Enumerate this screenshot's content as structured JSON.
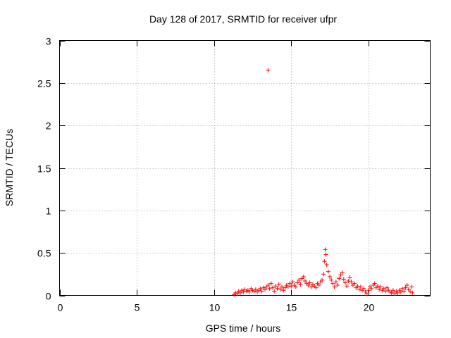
{
  "chart_data": {
    "type": "scatter",
    "title": "Day 128 of 2017, SRMTID for receiver ufpr",
    "xlabel": "GPS time / hours",
    "ylabel": "SRMTID / TECUs",
    "xlim": [
      0,
      24
    ],
    "ylim": [
      0,
      3
    ],
    "xticks": [
      0,
      5,
      10,
      15,
      20
    ],
    "xtick_labels": [
      "0",
      "5",
      "10",
      "15",
      "20"
    ],
    "yticks": [
      0,
      0.5,
      1,
      1.5,
      2,
      2.5,
      3
    ],
    "ytick_labels": [
      "0",
      "0.5",
      "1",
      "1.5",
      "2",
      "2.5",
      "3"
    ],
    "grid": true,
    "marker": "+",
    "color": "#ff0000",
    "series": [
      {
        "name": "SRMTID",
        "points": [
          [
            11.3,
            0.01
          ],
          [
            11.4,
            0.03
          ],
          [
            11.5,
            0.02
          ],
          [
            11.6,
            0.05
          ],
          [
            11.7,
            0.03
          ],
          [
            11.8,
            0.06
          ],
          [
            11.9,
            0.04
          ],
          [
            12.0,
            0.07
          ],
          [
            12.1,
            0.05
          ],
          [
            12.2,
            0.06
          ],
          [
            12.3,
            0.04
          ],
          [
            12.4,
            0.08
          ],
          [
            12.5,
            0.06
          ],
          [
            12.6,
            0.05
          ],
          [
            12.7,
            0.07
          ],
          [
            12.8,
            0.04
          ],
          [
            12.9,
            0.06
          ],
          [
            13.0,
            0.08
          ],
          [
            13.1,
            0.05
          ],
          [
            13.2,
            0.09
          ],
          [
            13.3,
            0.07
          ],
          [
            13.4,
            0.1
          ],
          [
            13.5,
            0.12
          ],
          [
            13.6,
            0.08
          ],
          [
            13.7,
            0.14
          ],
          [
            13.8,
            0.09
          ],
          [
            13.9,
            0.05
          ],
          [
            14.0,
            0.11
          ],
          [
            14.1,
            0.08
          ],
          [
            14.2,
            0.13
          ],
          [
            14.3,
            0.07
          ],
          [
            14.4,
            0.1
          ],
          [
            14.5,
            0.06
          ],
          [
            14.6,
            0.09
          ],
          [
            14.7,
            0.12
          ],
          [
            14.8,
            0.1
          ],
          [
            14.9,
            0.14
          ],
          [
            15.0,
            0.11
          ],
          [
            15.1,
            0.16
          ],
          [
            15.2,
            0.12
          ],
          [
            15.3,
            0.1
          ],
          [
            15.4,
            0.15
          ],
          [
            15.5,
            0.18
          ],
          [
            15.6,
            0.13
          ],
          [
            15.7,
            0.2
          ],
          [
            15.8,
            0.22
          ],
          [
            15.9,
            0.17
          ],
          [
            16.0,
            0.14
          ],
          [
            16.1,
            0.12
          ],
          [
            16.2,
            0.15
          ],
          [
            16.3,
            0.1
          ],
          [
            16.4,
            0.13
          ],
          [
            16.5,
            0.11
          ],
          [
            16.6,
            0.09
          ],
          [
            16.7,
            0.14
          ],
          [
            16.8,
            0.12
          ],
          [
            16.9,
            0.16
          ],
          [
            17.0,
            0.18
          ],
          [
            17.1,
            0.25
          ],
          [
            17.15,
            0.4
          ],
          [
            17.2,
            0.54
          ],
          [
            17.25,
            0.48
          ],
          [
            17.3,
            0.36
          ],
          [
            17.4,
            0.28
          ],
          [
            17.5,
            0.22
          ],
          [
            17.6,
            0.18
          ],
          [
            17.7,
            0.14
          ],
          [
            17.8,
            0.1
          ],
          [
            17.9,
            0.16
          ],
          [
            18.0,
            0.12
          ],
          [
            18.1,
            0.2
          ],
          [
            18.2,
            0.24
          ],
          [
            18.3,
            0.27
          ],
          [
            18.4,
            0.19
          ],
          [
            18.5,
            0.15
          ],
          [
            18.6,
            0.11
          ],
          [
            18.7,
            0.17
          ],
          [
            18.8,
            0.21
          ],
          [
            18.9,
            0.16
          ],
          [
            19.0,
            0.12
          ],
          [
            19.1,
            0.14
          ],
          [
            19.2,
            0.09
          ],
          [
            19.3,
            0.11
          ],
          [
            19.4,
            0.07
          ],
          [
            19.5,
            0.1
          ],
          [
            19.6,
            0.06
          ],
          [
            19.7,
            0.08
          ],
          [
            19.8,
            0.04
          ],
          [
            19.9,
            0.02
          ],
          [
            20.0,
            0.06
          ],
          [
            20.1,
            0.1
          ],
          [
            20.2,
            0.08
          ],
          [
            20.3,
            0.12
          ],
          [
            20.4,
            0.14
          ],
          [
            20.5,
            0.09
          ],
          [
            20.6,
            0.11
          ],
          [
            20.7,
            0.07
          ],
          [
            20.8,
            0.1
          ],
          [
            20.9,
            0.06
          ],
          [
            21.0,
            0.08
          ],
          [
            21.1,
            0.05
          ],
          [
            21.2,
            0.09
          ],
          [
            21.3,
            0.06
          ],
          [
            21.4,
            0.04
          ],
          [
            21.5,
            0.03
          ],
          [
            21.6,
            0.06
          ],
          [
            21.7,
            0.02
          ],
          [
            21.8,
            0.05
          ],
          [
            21.9,
            0.03
          ],
          [
            22.0,
            0.06
          ],
          [
            22.1,
            0.04
          ],
          [
            22.2,
            0.08
          ],
          [
            22.3,
            0.05
          ],
          [
            22.4,
            0.09
          ],
          [
            22.5,
            0.12
          ],
          [
            22.6,
            0.07
          ],
          [
            22.7,
            0.05
          ],
          [
            22.8,
            0.1
          ],
          [
            22.85,
            0.03
          ],
          [
            13.5,
            2.65
          ]
        ]
      }
    ]
  }
}
